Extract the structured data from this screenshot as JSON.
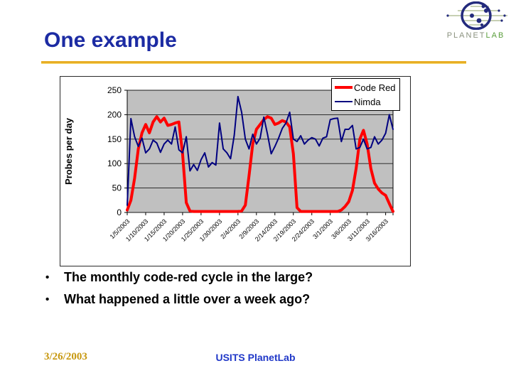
{
  "slide": {
    "title": "One example",
    "bullets": [
      "The monthly code-red cycle in the large?",
      "What happened a little over a week ago?"
    ],
    "footer": {
      "date": "3/26/2003",
      "center": "USITS PlanetLab"
    }
  },
  "logo": {
    "planet": "PLANET",
    "lab": "LAB",
    "planet_color": "#8b927f",
    "lab_color": "#5a9e3c",
    "mark_color": "#232a7c",
    "line_color": "#8fa06a"
  },
  "colors": {
    "title_blue": "#1c2ba3",
    "gold_rule": "#e8ae24",
    "footer_gold": "#c7980f",
    "footer_blue": "#2038c8"
  },
  "chart_data": {
    "type": "line",
    "title": "",
    "xlabel": "",
    "ylabel": "Probes per day",
    "ylim": [
      0,
      250
    ],
    "ytick_interval": 50,
    "yticks": [
      0,
      50,
      100,
      150,
      200,
      250
    ],
    "grid": true,
    "plot_bg": "#c0c0c0",
    "legend_position": "top-right",
    "xtick_every": 5,
    "xtick_labels": [
      "1/5/2003",
      "1/10/2003",
      "1/15/2003",
      "1/20/2003",
      "1/25/2003",
      "1/30/2003",
      "2/4/2003",
      "2/9/2003",
      "2/14/2003",
      "2/19/2003",
      "2/24/2003",
      "3/1/2003",
      "3/6/2003",
      "3/11/2003",
      "3/16/2003"
    ],
    "x": [
      "1/5/2003",
      "1/6/2003",
      "1/7/2003",
      "1/8/2003",
      "1/9/2003",
      "1/10/2003",
      "1/11/2003",
      "1/12/2003",
      "1/13/2003",
      "1/14/2003",
      "1/15/2003",
      "1/16/2003",
      "1/17/2003",
      "1/18/2003",
      "1/19/2003",
      "1/20/2003",
      "1/21/2003",
      "1/22/2003",
      "1/23/2003",
      "1/24/2003",
      "1/25/2003",
      "1/26/2003",
      "1/27/2003",
      "1/28/2003",
      "1/29/2003",
      "1/30/2003",
      "1/31/2003",
      "2/1/2003",
      "2/2/2003",
      "2/3/2003",
      "2/4/2003",
      "2/5/2003",
      "2/6/2003",
      "2/7/2003",
      "2/8/2003",
      "2/9/2003",
      "2/10/2003",
      "2/11/2003",
      "2/12/2003",
      "2/13/2003",
      "2/14/2003",
      "2/15/2003",
      "2/16/2003",
      "2/17/2003",
      "2/18/2003",
      "2/19/2003",
      "2/20/2003",
      "2/21/2003",
      "2/22/2003",
      "2/23/2003",
      "2/24/2003",
      "2/25/2003",
      "2/26/2003",
      "2/27/2003",
      "2/28/2003",
      "3/1/2003",
      "3/2/2003",
      "3/3/2003",
      "3/4/2003",
      "3/5/2003",
      "3/6/2003",
      "3/7/2003",
      "3/8/2003",
      "3/9/2003",
      "3/10/2003",
      "3/11/2003",
      "3/12/2003",
      "3/13/2003",
      "3/14/2003",
      "3/15/2003",
      "3/16/2003",
      "3/17/2003",
      "3/18/2003"
    ],
    "series": [
      {
        "name": "Code Red",
        "color": "#ff0000",
        "width": 4,
        "values": [
          5,
          25,
          70,
          130,
          163,
          180,
          163,
          185,
          196,
          185,
          193,
          178,
          180,
          183,
          185,
          120,
          20,
          3,
          2,
          2,
          2,
          2,
          2,
          2,
          2,
          2,
          2,
          2,
          2,
          2,
          2,
          3,
          15,
          75,
          140,
          170,
          180,
          190,
          196,
          193,
          180,
          183,
          188,
          185,
          175,
          120,
          10,
          2,
          2,
          2,
          2,
          2,
          2,
          2,
          2,
          2,
          2,
          2,
          5,
          12,
          22,
          45,
          90,
          150,
          168,
          140,
          90,
          60,
          48,
          40,
          35,
          18,
          2
        ]
      },
      {
        "name": "Nimda",
        "color": "#000080",
        "width": 2,
        "values": [
          15,
          192,
          155,
          135,
          152,
          122,
          130,
          148,
          142,
          123,
          140,
          148,
          140,
          175,
          128,
          122,
          155,
          85,
          98,
          86,
          108,
          122,
          93,
          102,
          97,
          183,
          130,
          122,
          110,
          158,
          237,
          205,
          150,
          130,
          160,
          140,
          152,
          195,
          160,
          120,
          135,
          152,
          172,
          183,
          205,
          150,
          145,
          157,
          140,
          148,
          153,
          150,
          136,
          152,
          155,
          190,
          192,
          193,
          145,
          170,
          170,
          178,
          130,
          133,
          150,
          130,
          133,
          155,
          140,
          148,
          162,
          200,
          170
        ]
      }
    ]
  }
}
